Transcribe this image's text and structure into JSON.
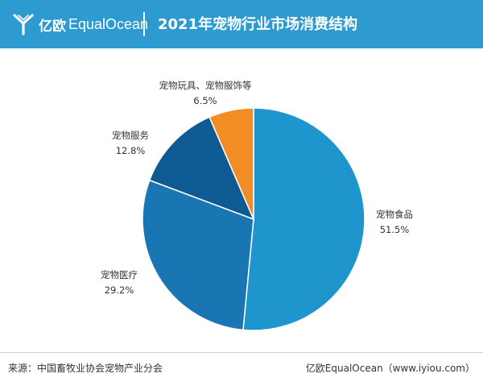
{
  "header": {
    "brand_cn": "亿欧",
    "brand_en": "EqualOcean",
    "title": "2021年宠物行业市场消费结构",
    "bg_color": "#2d9ad0"
  },
  "chart_data": {
    "type": "pie",
    "title": "2021年宠物行业市场消费结构",
    "slices": [
      {
        "label": "宠物食品",
        "value": 51.5,
        "value_label": "51.5%",
        "color": "#1e95cd"
      },
      {
        "label": "宠物医疗",
        "value": 29.2,
        "value_label": "29.2%",
        "color": "#1a76b3"
      },
      {
        "label": "宠物服务",
        "value": 12.8,
        "value_label": "12.8%",
        "color": "#0e5a93"
      },
      {
        "label": "宠物玩具、宠物服饰等",
        "value": 6.5,
        "value_label": "6.5%",
        "color": "#f28c25"
      }
    ],
    "start": "12 o'clock",
    "direction": "clockwise",
    "legend": "none"
  },
  "footer": {
    "source": "来源：中国畜牧业协会宠物产业分会",
    "credit": "亿欧EqualOcean（www.iyiou.com）"
  }
}
